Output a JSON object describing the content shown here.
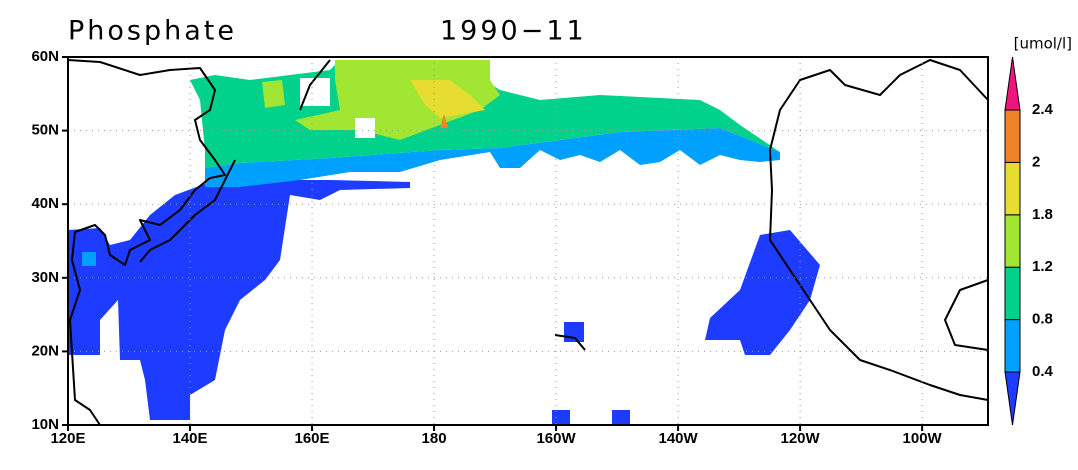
{
  "title": "Phosphate",
  "date": "1990−11",
  "unit": "[umol/l]",
  "lat_ticks": [
    {
      "value": 60,
      "label": "60N"
    },
    {
      "value": 50,
      "label": "50N"
    },
    {
      "value": 40,
      "label": "40N"
    },
    {
      "value": 30,
      "label": "30N"
    },
    {
      "value": 20,
      "label": "20N"
    },
    {
      "value": 10,
      "label": "10N"
    }
  ],
  "lon_ticks": [
    {
      "value": 120,
      "label": "120E"
    },
    {
      "value": 140,
      "label": "140E"
    },
    {
      "value": 160,
      "label": "160E"
    },
    {
      "value": 180,
      "label": "180"
    },
    {
      "value": 200,
      "label": "160W"
    },
    {
      "value": 220,
      "label": "140W"
    },
    {
      "value": 240,
      "label": "120W"
    },
    {
      "value": 260,
      "label": "100W"
    }
  ],
  "lon_range": [
    120,
    270.8
  ],
  "lat_range": [
    10,
    60
  ],
  "colorbar": {
    "levels": [
      0.4,
      0.8,
      1.2,
      1.8,
      2,
      2.4
    ],
    "colors": [
      "#1e3cff",
      "#00a0ff",
      "#00d28c",
      "#a0e632",
      "#e6dc32",
      "#f08228",
      "#f0147f"
    ]
  }
}
